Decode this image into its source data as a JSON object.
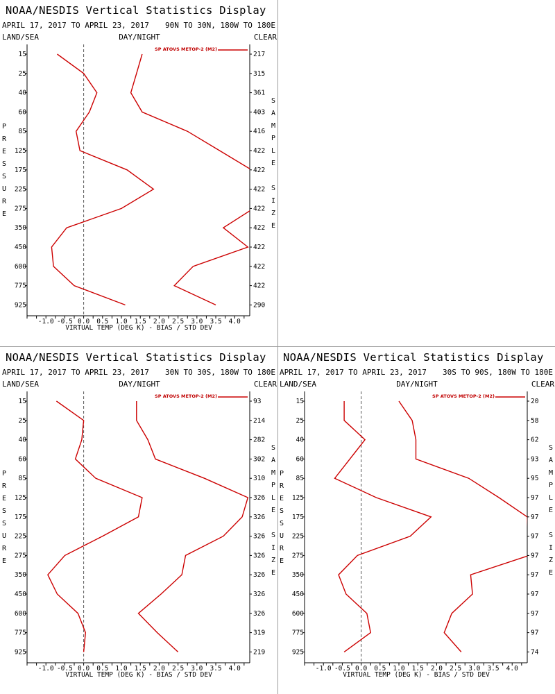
{
  "shared": {
    "title": "NOAA/NESDIS Vertical Statistics Display",
    "date_range": "APRIL 17, 2017 TO APRIL 23, 2017",
    "land_sea": "LAND/SEA",
    "day_night": "DAY/NIGHT",
    "clear": "CLEAR",
    "pressure_letters": [
      "P",
      "R",
      "E",
      "S",
      "S",
      "U",
      "R",
      "E"
    ],
    "sample_letters": [
      "S",
      "A",
      "M",
      "P",
      "L",
      "E"
    ],
    "size_letters": [
      "S",
      "I",
      "Z",
      "E"
    ],
    "line_color": "#cc0000",
    "zero_line_style": "dashed"
  },
  "panels": [
    {
      "region": "90N TO 30N, 180W TO 180E",
      "chart_data": {
        "type": "line",
        "xlabel": "VIRTUAL TEMP (DEG K) - BIAS / STD DEV",
        "ylabel": "PRESSURE",
        "right_axis_label": "SAMPLE SIZE",
        "x_ticks": [
          "-1.0",
          "-0.5",
          "0.0",
          "0.5",
          "1.0",
          "1.5",
          "2.0",
          "2.5",
          "3.0",
          "3.5",
          "4.0"
        ],
        "xlim": [
          -1.5,
          4.4
        ],
        "y_ticks": [
          "15",
          "25",
          "40",
          "60",
          "85",
          "125",
          "175",
          "225",
          "275",
          "350",
          "450",
          "600",
          "775",
          "925"
        ],
        "sample_sizes": [
          "217",
          "315",
          "361",
          "403",
          "416",
          "422",
          "422",
          "422",
          "422",
          "422",
          "422",
          "422",
          "422",
          "290"
        ],
        "series": [
          {
            "name": "SP ATOVS METOP-2 (M2)",
            "values": [
              -0.7,
              0.0,
              0.35,
              0.15,
              -0.2,
              -0.1,
              1.15,
              1.85,
              1.0,
              -0.45,
              -0.85,
              -0.8,
              -0.25,
              1.1
            ]
          },
          {
            "values": [
              1.55,
              1.4,
              1.25,
              1.55,
              2.75,
              3.6,
              4.45,
              null,
              4.5,
              3.7,
              4.35,
              2.9,
              2.4,
              3.5
            ]
          }
        ]
      }
    },
    {
      "region": "30N TO 30S, 180W TO 180E",
      "chart_data": {
        "type": "line",
        "xlabel": "VIRTUAL TEMP (DEG K) - BIAS / STD DEV",
        "ylabel": "PRESSURE",
        "right_axis_label": "SAMPLE SIZE",
        "x_ticks": [
          "-1.0",
          "-0.5",
          "0.0",
          "0.5",
          "1.0",
          "1.5",
          "2.0",
          "2.5",
          "3.0",
          "3.5",
          "4.0"
        ],
        "xlim": [
          -1.5,
          4.4
        ],
        "y_ticks": [
          "15",
          "25",
          "40",
          "60",
          "85",
          "125",
          "175",
          "225",
          "275",
          "350",
          "450",
          "600",
          "775",
          "925"
        ],
        "sample_sizes": [
          "93",
          "214",
          "282",
          "302",
          "310",
          "326",
          "326",
          "326",
          "326",
          "326",
          "326",
          "326",
          "319",
          "219"
        ],
        "series": [
          {
            "name": "SP ATOVS METOP-2 (M2)",
            "values": [
              -0.72,
              0.0,
              -0.05,
              -0.22,
              0.32,
              1.55,
              1.45,
              0.5,
              -0.5,
              -0.95,
              -0.7,
              -0.15,
              0.05,
              0.0
            ]
          },
          {
            "values": [
              1.4,
              1.4,
              1.7,
              1.9,
              3.2,
              4.35,
              4.2,
              3.7,
              2.7,
              2.6,
              2.05,
              1.45,
              1.95,
              2.5
            ]
          }
        ]
      }
    },
    {
      "region": "30S TO 90S, 180W TO 180E",
      "chart_data": {
        "type": "line",
        "xlabel": "VIRTUAL TEMP (DEG K) - BIAS / STD DEV",
        "ylabel": "PRESSURE",
        "right_axis_label": "SAMPLE SIZE",
        "x_ticks": [
          "-1.0",
          "-0.5",
          "0.0",
          "0.5",
          "1.0",
          "1.5",
          "2.0",
          "2.5",
          "3.0",
          "3.5",
          "4.0"
        ],
        "xlim": [
          -1.5,
          4.4
        ],
        "y_ticks": [
          "15",
          "25",
          "40",
          "60",
          "85",
          "125",
          "175",
          "225",
          "275",
          "350",
          "450",
          "600",
          "775",
          "925"
        ],
        "sample_sizes": [
          "20",
          "58",
          "62",
          "93",
          "95",
          "97",
          "97",
          "97",
          "97",
          "97",
          "97",
          "97",
          "97",
          "74"
        ],
        "series": [
          {
            "name": "SP ATOVS METOP-2 (M2)",
            "values": [
              -0.45,
              -0.45,
              0.1,
              -0.3,
              -0.7,
              0.4,
              1.85,
              1.3,
              -0.1,
              -0.6,
              -0.4,
              0.15,
              0.25,
              -0.45
            ]
          },
          {
            "values": [
              1.0,
              1.35,
              1.45,
              1.45,
              2.85,
              3.65,
              4.4,
              null,
              4.45,
              2.9,
              2.95,
              2.4,
              2.2,
              2.65
            ]
          }
        ]
      }
    }
  ]
}
